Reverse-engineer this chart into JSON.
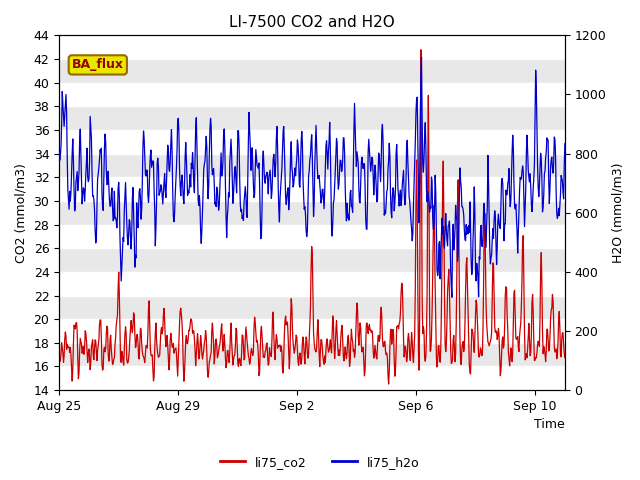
{
  "title": "LI-7500 CO2 and H2O",
  "xlabel": "Time",
  "ylabel_left": "CO2 (mmol/m3)",
  "ylabel_right": "H2O (mmol/m3)",
  "ylim_left": [
    14,
    44
  ],
  "ylim_right": [
    0,
    1200
  ],
  "yticks_left": [
    14,
    16,
    18,
    20,
    22,
    24,
    26,
    28,
    30,
    32,
    34,
    36,
    38,
    40,
    42,
    44
  ],
  "yticks_right": [
    0,
    200,
    400,
    600,
    800,
    1000,
    1200
  ],
  "xtick_labels": [
    "Aug 25",
    "Aug 29",
    "Sep 2",
    "Sep 6",
    "Sep 10"
  ],
  "xtick_positions": [
    0,
    4,
    8,
    12,
    16
  ],
  "xlim": [
    0,
    17
  ],
  "line_co2_color": "#cc0000",
  "line_h2o_color": "#0000cc",
  "label_co2": "li75_co2",
  "label_h2o": "li75_h2o",
  "ba_flux_label": "BA_flux",
  "ba_flux_bg": "#e8e800",
  "ba_flux_border": "#996600",
  "plot_bg_color": "#e8e8e8",
  "stripe_color": "#ffffff",
  "title_fontsize": 11,
  "axis_label_fontsize": 9,
  "tick_fontsize": 9,
  "linewidth": 0.9
}
